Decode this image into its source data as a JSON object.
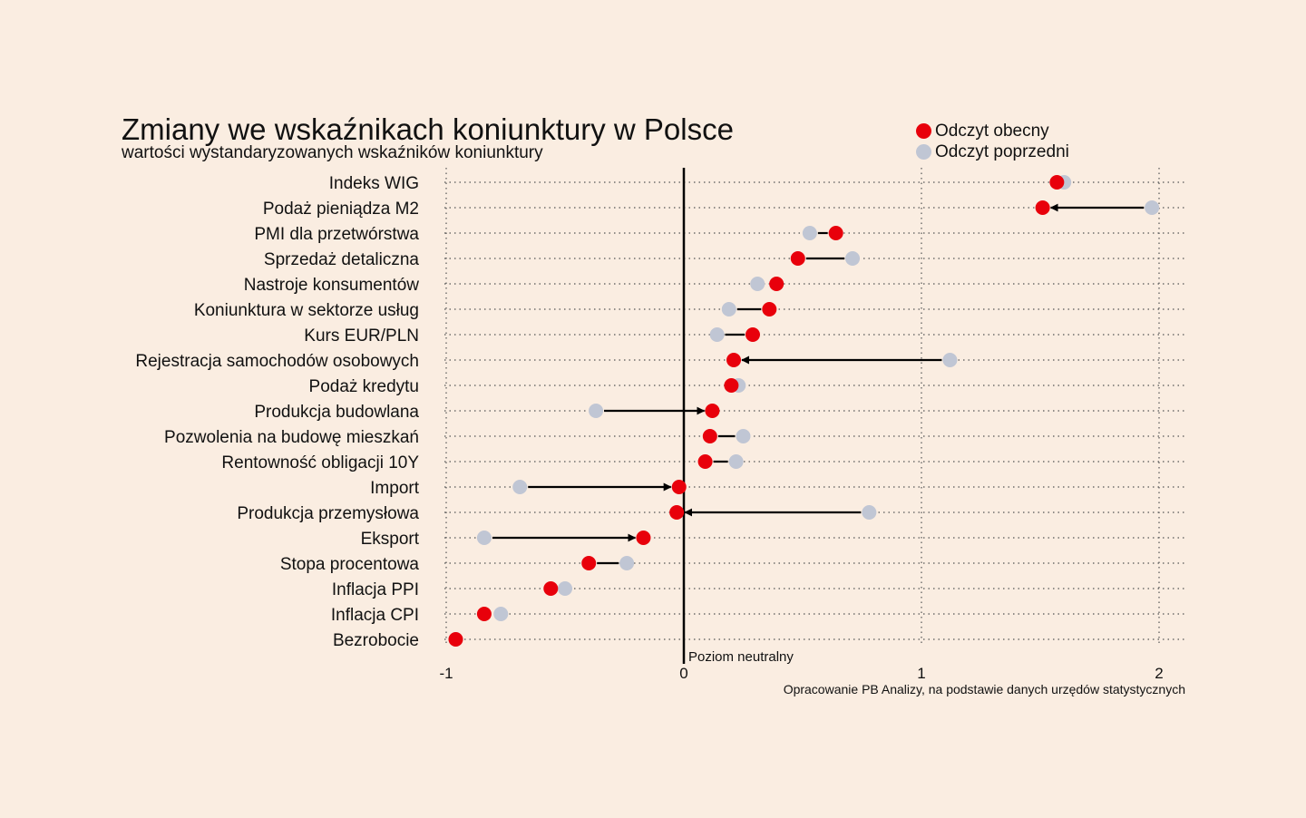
{
  "title": "Zmiany we wskaźnikach koniunktury w Polsce",
  "subtitle": "wartości wystandaryzowanych wskaźników koniunktury",
  "source": "Opracowanie PB Analizy, na podstawie danych urzędów statystycznych",
  "colors": {
    "background": "#faede1",
    "current": "#e8000b",
    "previous": "#c0c6d4"
  },
  "chart_data": {
    "type": "dumbbell",
    "legend": {
      "position": "top-right",
      "entries": [
        "Odczyt obecny",
        "Odczyt poprzedni"
      ]
    },
    "series": [
      {
        "name": "Odczyt obecny",
        "color": "#e8000b"
      },
      {
        "name": "Odczyt poprzedni",
        "color": "#c0c6d4"
      }
    ],
    "xlim": [
      -1,
      2
    ],
    "xticks": [
      -1,
      0,
      1,
      2
    ],
    "xtick_labels": [
      "-1",
      "0",
      "1",
      "2"
    ],
    "reference_line": {
      "x": 0,
      "label": "Poziom neutralny"
    },
    "grid": "dotted",
    "rows": [
      {
        "label": "Indeks WIG",
        "current": 1.57,
        "previous": 1.6
      },
      {
        "label": "Podaż pieniądza M2",
        "current": 1.51,
        "previous": 1.97
      },
      {
        "label": "PMI dla przetwórstwa",
        "current": 0.64,
        "previous": 0.53
      },
      {
        "label": "Sprzedaż detaliczna",
        "current": 0.48,
        "previous": 0.71
      },
      {
        "label": "Nastroje konsumentów",
        "current": 0.39,
        "previous": 0.31
      },
      {
        "label": "Koniunktura w sektorze usług",
        "current": 0.36,
        "previous": 0.19
      },
      {
        "label": "Kurs EUR/PLN",
        "current": 0.29,
        "previous": 0.14
      },
      {
        "label": "Rejestracja samochodów osobowych",
        "current": 0.21,
        "previous": 1.12
      },
      {
        "label": "Podaż kredytu",
        "current": 0.2,
        "previous": 0.23
      },
      {
        "label": "Produkcja budowlana",
        "current": 0.12,
        "previous": -0.37
      },
      {
        "label": "Pozwolenia na budowę mieszkań",
        "current": 0.11,
        "previous": 0.25
      },
      {
        "label": "Rentowność obligacji 10Y",
        "current": 0.09,
        "previous": 0.22
      },
      {
        "label": "Import",
        "current": -0.02,
        "previous": -0.69
      },
      {
        "label": "Produkcja przemysłowa",
        "current": -0.03,
        "previous": 0.78
      },
      {
        "label": "Eksport",
        "current": -0.17,
        "previous": -0.84
      },
      {
        "label": "Stopa procentowa",
        "current": -0.4,
        "previous": -0.24
      },
      {
        "label": "Inflacja PPI",
        "current": -0.56,
        "previous": -0.5
      },
      {
        "label": "Inflacja CPI",
        "current": -0.84,
        "previous": -0.77
      },
      {
        "label": "Bezrobocie",
        "current": -0.96,
        "previous": -0.96
      }
    ]
  }
}
